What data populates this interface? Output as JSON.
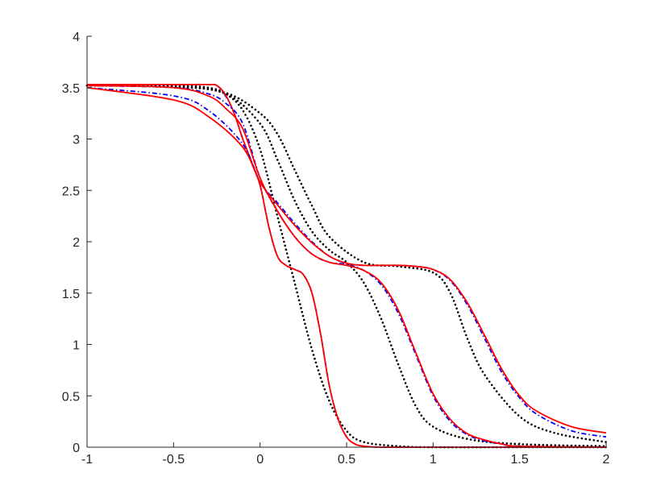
{
  "chart_data": {
    "type": "line",
    "title": "",
    "xlabel": "",
    "ylabel": "",
    "xlim": [
      -1,
      2
    ],
    "ylim": [
      0,
      4
    ],
    "xticks": [
      -1,
      -0.5,
      0,
      0.5,
      1,
      1.5,
      2
    ],
    "yticks": [
      0,
      0.5,
      1,
      1.5,
      2,
      2.5,
      3,
      3.5,
      4
    ],
    "xtick_labels": [
      "-1",
      "-0.5",
      "0",
      "0.5",
      "1",
      "1.5",
      "2"
    ],
    "ytick_labels": [
      "0",
      "0.5",
      "1",
      "1.5",
      "2",
      "2.5",
      "3",
      "3.5",
      "4"
    ],
    "grid": false,
    "legend": "none",
    "colors": {
      "black": "#000000",
      "blue": "#0000ff",
      "red": "#ff0000"
    },
    "series": [
      {
        "color": "black",
        "style": "dotted",
        "x": [
          -1.0,
          -0.5,
          -0.3,
          -0.2,
          -0.1,
          0.0,
          0.1,
          0.2,
          0.3,
          0.4,
          0.5,
          0.6,
          0.8,
          1.0,
          1.5,
          2.0
        ],
        "y": [
          3.52,
          3.52,
          3.5,
          3.44,
          3.28,
          2.9,
          2.25,
          1.6,
          0.95,
          0.45,
          0.16,
          0.05,
          0.01,
          0.0,
          0.0,
          0.0
        ]
      },
      {
        "color": "black",
        "style": "dotted",
        "x": [
          -1.0,
          -0.5,
          -0.2,
          0.0,
          0.1,
          0.2,
          0.3,
          0.4,
          0.5,
          0.6,
          0.7,
          0.8,
          0.9,
          1.0,
          1.2,
          1.5,
          2.0
        ],
        "y": [
          3.52,
          3.51,
          3.44,
          3.15,
          2.8,
          2.4,
          2.1,
          1.92,
          1.8,
          1.6,
          1.25,
          0.8,
          0.4,
          0.2,
          0.08,
          0.03,
          0.01
        ]
      },
      {
        "color": "black",
        "style": "dotted",
        "x": [
          -1.0,
          -0.5,
          -0.2,
          0.0,
          0.1,
          0.2,
          0.3,
          0.4,
          0.6,
          0.8,
          1.0,
          1.1,
          1.2,
          1.3,
          1.5,
          1.7,
          2.0
        ],
        "y": [
          3.52,
          3.51,
          3.45,
          3.25,
          3.05,
          2.7,
          2.35,
          2.05,
          1.8,
          1.76,
          1.7,
          1.5,
          1.05,
          0.7,
          0.3,
          0.14,
          0.05
        ]
      },
      {
        "color": "blue",
        "style": "dashdot",
        "x": [
          -1.0,
          -0.5,
          -0.3,
          -0.25,
          -0.2,
          -0.15,
          -0.1,
          -0.05,
          0.0,
          0.05,
          0.1,
          0.15,
          0.2,
          0.25,
          0.3,
          0.35,
          0.4,
          0.45,
          0.5,
          0.55,
          0.6,
          0.7,
          1.0,
          2.0
        ],
        "y": [
          3.53,
          3.53,
          3.53,
          3.52,
          3.42,
          3.25,
          3.0,
          2.78,
          2.55,
          2.15,
          1.86,
          1.77,
          1.73,
          1.68,
          1.5,
          1.1,
          0.6,
          0.28,
          0.1,
          0.03,
          0.01,
          0.0,
          0.0,
          0.0
        ]
      },
      {
        "color": "red",
        "style": "solid",
        "x": [
          -1.0,
          -0.5,
          -0.3,
          -0.25,
          -0.2,
          -0.15,
          -0.1,
          -0.05,
          0.0,
          0.05,
          0.1,
          0.15,
          0.2,
          0.25,
          0.3,
          0.35,
          0.4,
          0.45,
          0.5,
          0.55,
          0.6,
          0.7,
          1.0,
          2.0
        ],
        "y": [
          3.53,
          3.53,
          3.53,
          3.52,
          3.43,
          3.25,
          3.0,
          2.78,
          2.55,
          2.15,
          1.86,
          1.77,
          1.73,
          1.68,
          1.5,
          1.1,
          0.6,
          0.28,
          0.1,
          0.03,
          0.01,
          0.0,
          0.0,
          0.0
        ]
      },
      {
        "color": "blue",
        "style": "dashdot",
        "x": [
          -1.0,
          -0.5,
          -0.3,
          -0.2,
          -0.1,
          0.0,
          0.1,
          0.2,
          0.3,
          0.4,
          0.5,
          0.6,
          0.7,
          0.8,
          0.9,
          1.0,
          1.1,
          1.2,
          1.3,
          1.4,
          1.5,
          2.0
        ],
        "y": [
          3.52,
          3.5,
          3.44,
          3.35,
          3.15,
          2.62,
          2.3,
          2.05,
          1.88,
          1.8,
          1.78,
          1.72,
          1.58,
          1.3,
          0.9,
          0.5,
          0.25,
          0.12,
          0.06,
          0.03,
          0.01,
          0.0
        ]
      },
      {
        "color": "red",
        "style": "solid",
        "x": [
          -1.0,
          -0.5,
          -0.3,
          -0.2,
          -0.1,
          0.0,
          0.1,
          0.2,
          0.3,
          0.4,
          0.5,
          0.6,
          0.7,
          0.8,
          0.9,
          1.0,
          1.1,
          1.2,
          1.3,
          1.4,
          1.5,
          2.0
        ],
        "y": [
          3.52,
          3.5,
          3.42,
          3.3,
          3.1,
          2.62,
          2.3,
          2.05,
          1.88,
          1.8,
          1.77,
          1.72,
          1.6,
          1.33,
          0.92,
          0.52,
          0.27,
          0.13,
          0.07,
          0.03,
          0.01,
          0.0
        ]
      },
      {
        "color": "blue",
        "style": "dashdot",
        "x": [
          -1.0,
          -0.5,
          -0.3,
          -0.1,
          0.0,
          0.1,
          0.2,
          0.3,
          0.4,
          0.5,
          0.6,
          0.7,
          0.8,
          0.9,
          1.0,
          1.1,
          1.2,
          1.3,
          1.4,
          1.5,
          1.6,
          1.8,
          2.0
        ],
        "y": [
          3.5,
          3.42,
          3.28,
          2.95,
          2.58,
          2.38,
          2.18,
          2.0,
          1.86,
          1.79,
          1.77,
          1.77,
          1.77,
          1.76,
          1.73,
          1.62,
          1.38,
          1.05,
          0.72,
          0.48,
          0.32,
          0.16,
          0.1
        ]
      },
      {
        "color": "red",
        "style": "solid",
        "x": [
          -1.0,
          -0.5,
          -0.3,
          -0.1,
          0.0,
          0.1,
          0.2,
          0.3,
          0.4,
          0.5,
          0.6,
          0.7,
          0.8,
          0.9,
          1.0,
          1.1,
          1.2,
          1.3,
          1.4,
          1.5,
          1.6,
          1.8,
          2.0
        ],
        "y": [
          3.5,
          3.38,
          3.22,
          2.92,
          2.58,
          2.36,
          2.16,
          1.99,
          1.86,
          1.79,
          1.77,
          1.77,
          1.77,
          1.76,
          1.73,
          1.63,
          1.4,
          1.08,
          0.75,
          0.5,
          0.35,
          0.2,
          0.14
        ]
      }
    ]
  }
}
